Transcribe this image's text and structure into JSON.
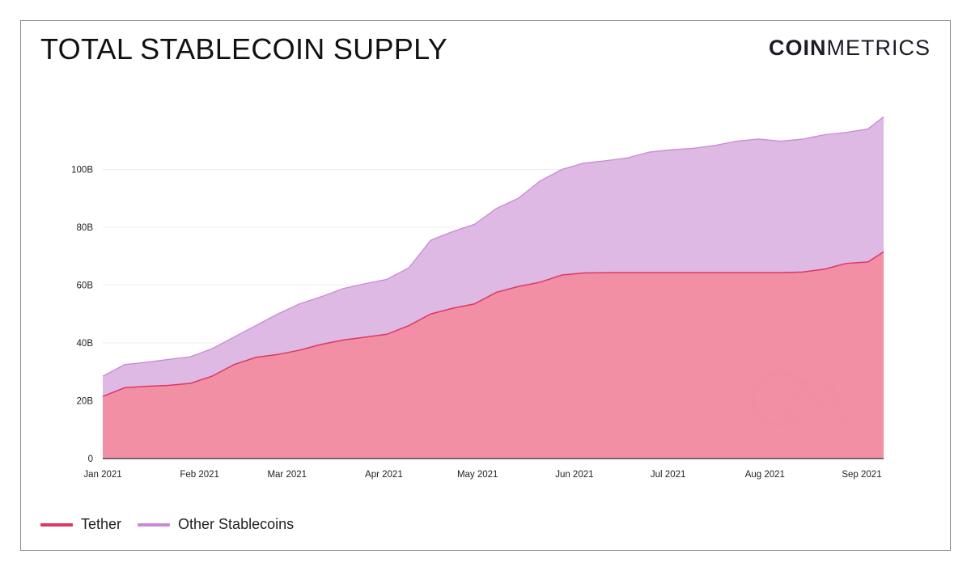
{
  "header": {
    "title": "TOTAL STABLECOIN SUPPLY",
    "logo_bold": "COIN",
    "logo_light": "METRICS"
  },
  "colors": {
    "tether_line": "#d93a63",
    "tether_fill": "#f2899f",
    "other_line": "#c98ad6",
    "other_fill": "#dbb3e2",
    "grid": "#ececec",
    "axis": "#333333"
  },
  "chart_data": {
    "type": "area",
    "stacked": true,
    "title": "TOTAL STABLECOIN SUPPLY",
    "xlabel": "",
    "ylabel": "",
    "x_ticks": [
      "Jan 2021",
      "Feb 2021",
      "Mar 2021",
      "Apr 2021",
      "May 2021",
      "Jun 2021",
      "Jul 2021",
      "Aug 2021",
      "Sep 2021"
    ],
    "y_ticks": [
      "0",
      "20B",
      "40B",
      "60B",
      "80B",
      "100B"
    ],
    "ylim": [
      0,
      120
    ],
    "xlim": [
      "2021-01-01",
      "2021-09-08"
    ],
    "grid": true,
    "legend": "bottom-left",
    "watermark": "CM",
    "dates": [
      "2021-01-01",
      "2021-01-08",
      "2021-01-15",
      "2021-01-22",
      "2021-01-29",
      "2021-02-05",
      "2021-02-12",
      "2021-02-19",
      "2021-02-26",
      "2021-03-05",
      "2021-03-12",
      "2021-03-19",
      "2021-03-26",
      "2021-04-02",
      "2021-04-09",
      "2021-04-16",
      "2021-04-23",
      "2021-04-30",
      "2021-05-07",
      "2021-05-14",
      "2021-05-21",
      "2021-05-28",
      "2021-06-04",
      "2021-06-11",
      "2021-06-18",
      "2021-06-25",
      "2021-07-02",
      "2021-07-09",
      "2021-07-16",
      "2021-07-23",
      "2021-07-30",
      "2021-08-06",
      "2021-08-13",
      "2021-08-20",
      "2021-08-27",
      "2021-09-03",
      "2021-09-08"
    ],
    "series": [
      {
        "name": "Tether",
        "values": [
          21.5,
          24.5,
          25.0,
          25.3,
          26.0,
          28.5,
          32.5,
          35.0,
          36.0,
          37.5,
          39.5,
          41.0,
          42.0,
          43.0,
          46.0,
          50.0,
          52.0,
          53.5,
          57.5,
          59.5,
          61.0,
          63.5,
          64.2,
          64.3,
          64.3,
          64.3,
          64.3,
          64.3,
          64.3,
          64.3,
          64.3,
          64.3,
          64.5,
          65.5,
          67.5,
          68.0,
          71.5
        ]
      },
      {
        "name": "Other Stablecoins",
        "values": [
          7.0,
          8.0,
          8.3,
          9.0,
          9.2,
          9.5,
          9.5,
          11.0,
          14.0,
          16.0,
          16.5,
          17.8,
          18.5,
          19.0,
          20.0,
          25.5,
          26.5,
          27.5,
          29.0,
          30.5,
          35.0,
          36.5,
          38.0,
          38.7,
          39.7,
          41.7,
          42.5,
          43.0,
          44.0,
          45.5,
          46.2,
          45.5,
          46.0,
          46.5,
          45.3,
          46.0,
          46.7
        ]
      }
    ]
  },
  "legend": {
    "items": [
      {
        "label": "Tether",
        "color": "#d93a63"
      },
      {
        "label": "Other Stablecoins",
        "color": "#c98ad6"
      }
    ]
  }
}
